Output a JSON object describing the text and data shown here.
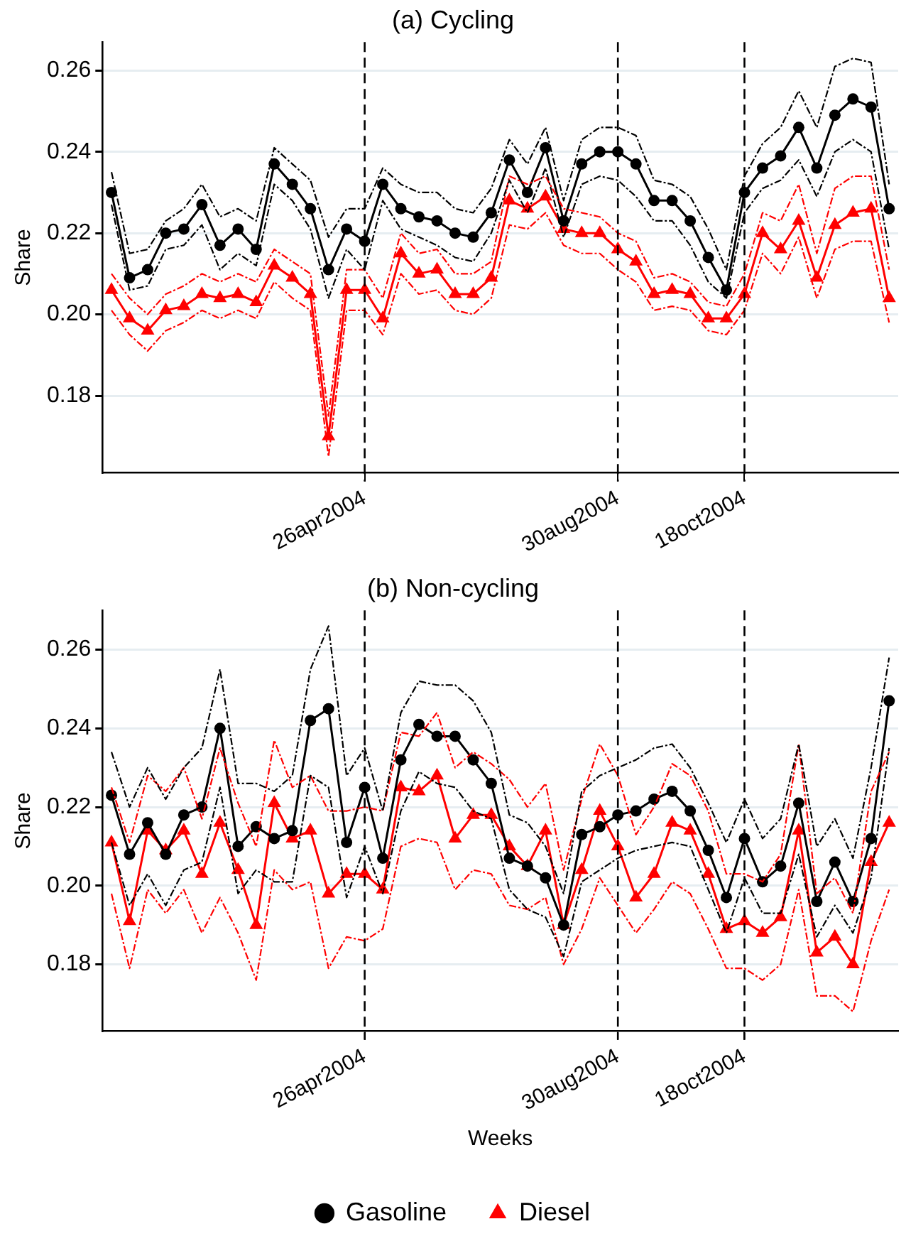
{
  "chart_data": [
    {
      "type": "line",
      "title": "(a) Cycling",
      "ylabel": "Share",
      "grid": "y",
      "categories": [
        null,
        null,
        null,
        null,
        null,
        null,
        null,
        null,
        null,
        null,
        null,
        null,
        null,
        null,
        "26apr2004",
        null,
        null,
        null,
        null,
        null,
        null,
        null,
        null,
        null,
        null,
        null,
        null,
        null,
        "30aug2004",
        null,
        null,
        null,
        null,
        null,
        null,
        "18oct2004",
        null,
        null,
        null,
        null,
        null,
        null,
        null,
        null
      ],
      "ylim": [
        0.161,
        0.267
      ],
      "yticks": [
        0.18,
        {
          "value": 0.2,
          "label": "0.20"
        },
        0.22,
        0.24,
        0.26
      ],
      "ref_lines": [
        {
          "axis": "x",
          "value": "26apr2004",
          "color": "#000000",
          "line_style": "dashed"
        },
        {
          "axis": "x",
          "value": "30aug2004",
          "color": "#000000",
          "line_style": "dashed"
        },
        {
          "axis": "x",
          "value": "18oct2004",
          "color": "#000000",
          "line_style": "dashed"
        }
      ],
      "series": [
        {
          "color": "#000000",
          "marker": "none",
          "line_style": "dashed",
          "values": [
            0.235,
            0.215,
            0.216,
            0.223,
            0.226,
            0.232,
            0.224,
            0.226,
            0.223,
            0.241,
            0.237,
            0.233,
            0.219,
            0.226,
            0.226,
            0.236,
            0.232,
            0.23,
            0.23,
            0.226,
            0.225,
            0.231,
            0.243,
            0.237,
            0.246,
            0.228,
            0.243,
            0.246,
            0.246,
            0.244,
            0.233,
            0.232,
            0.229,
            0.221,
            0.211,
            0.234,
            0.242,
            0.246,
            0.255,
            0.246,
            0.261,
            0.263,
            0.262,
            0.232
          ]
        },
        {
          "color": "#000000",
          "marker": "none",
          "line_style": "dashed",
          "values": [
            0.227,
            0.206,
            0.207,
            0.216,
            0.217,
            0.222,
            0.211,
            0.215,
            0.212,
            0.232,
            0.228,
            0.221,
            0.204,
            0.216,
            0.211,
            0.228,
            0.221,
            0.219,
            0.217,
            0.214,
            0.213,
            0.22,
            0.233,
            0.225,
            0.236,
            0.219,
            0.232,
            0.234,
            0.233,
            0.229,
            0.223,
            0.223,
            0.217,
            0.208,
            0.204,
            0.225,
            0.231,
            0.233,
            0.238,
            0.229,
            0.24,
            0.243,
            0.24,
            0.216
          ]
        },
        {
          "color": "#ff0000",
          "marker": "none",
          "line_style": "dashed",
          "values": [
            0.21,
            0.204,
            0.2,
            0.205,
            0.207,
            0.21,
            0.208,
            0.21,
            0.208,
            0.216,
            0.213,
            0.21,
            0.175,
            0.211,
            0.211,
            0.204,
            0.22,
            0.215,
            0.216,
            0.21,
            0.21,
            0.213,
            0.234,
            0.232,
            0.234,
            0.226,
            0.225,
            0.224,
            0.22,
            0.218,
            0.209,
            0.21,
            0.208,
            0.203,
            0.202,
            0.21,
            0.225,
            0.223,
            0.232,
            0.215,
            0.231,
            0.234,
            0.234,
            0.211
          ]
        },
        {
          "color": "#ff0000",
          "marker": "none",
          "line_style": "dashed",
          "values": [
            0.201,
            0.195,
            0.191,
            0.196,
            0.198,
            0.201,
            0.199,
            0.201,
            0.199,
            0.208,
            0.204,
            0.201,
            0.165,
            0.201,
            0.201,
            0.195,
            0.21,
            0.205,
            0.206,
            0.201,
            0.2,
            0.204,
            0.222,
            0.221,
            0.225,
            0.217,
            0.215,
            0.215,
            0.211,
            0.208,
            0.201,
            0.202,
            0.201,
            0.196,
            0.195,
            0.201,
            0.215,
            0.21,
            0.219,
            0.204,
            0.216,
            0.218,
            0.218,
            0.198
          ]
        },
        {
          "color": "#000000",
          "marker": "circle",
          "line_style": "solid",
          "values": [
            0.23,
            0.209,
            0.211,
            0.22,
            0.221,
            0.227,
            0.217,
            0.221,
            0.216,
            0.237,
            0.232,
            0.226,
            0.211,
            0.221,
            0.218,
            0.232,
            0.226,
            0.224,
            0.223,
            0.22,
            0.219,
            0.225,
            0.238,
            0.23,
            0.241,
            0.223,
            0.237,
            0.24,
            0.24,
            0.237,
            0.228,
            0.228,
            0.223,
            0.214,
            0.206,
            0.23,
            0.236,
            0.239,
            0.246,
            0.236,
            0.249,
            0.253,
            0.251,
            0.226
          ]
        },
        {
          "color": "#ff0000",
          "marker": "triangle",
          "line_style": "solid",
          "values": [
            0.206,
            0.199,
            0.196,
            0.201,
            0.202,
            0.205,
            0.204,
            0.205,
            0.203,
            0.212,
            0.209,
            0.205,
            0.17,
            0.206,
            0.206,
            0.199,
            0.215,
            0.21,
            0.211,
            0.205,
            0.205,
            0.209,
            0.228,
            0.226,
            0.229,
            0.221,
            0.22,
            0.22,
            0.216,
            0.213,
            0.205,
            0.206,
            0.205,
            0.199,
            0.199,
            0.205,
            0.22,
            0.216,
            0.223,
            0.209,
            0.222,
            0.225,
            0.226,
            0.204
          ]
        }
      ]
    },
    {
      "type": "line",
      "title": "(b) Non-cycling",
      "xlabel": "Weeks",
      "ylabel": "Share",
      "grid": "y",
      "legend": "bottom",
      "categories": [
        null,
        null,
        null,
        null,
        null,
        null,
        null,
        null,
        null,
        null,
        null,
        null,
        null,
        null,
        "26apr2004",
        null,
        null,
        null,
        null,
        null,
        null,
        null,
        null,
        null,
        null,
        null,
        null,
        null,
        "30aug2004",
        null,
        null,
        null,
        null,
        null,
        null,
        "18oct2004",
        null,
        null,
        null,
        null,
        null,
        null,
        null,
        null
      ],
      "ylim": [
        0.163,
        0.27
      ],
      "yticks": [
        0.18,
        {
          "value": 0.2,
          "label": "0.20"
        },
        0.22,
        0.24,
        0.26
      ],
      "ref_lines": [
        {
          "axis": "x",
          "value": "26apr2004",
          "color": "#000000",
          "line_style": "dashed"
        },
        {
          "axis": "x",
          "value": "30aug2004",
          "color": "#000000",
          "line_style": "dashed"
        },
        {
          "axis": "x",
          "value": "18oct2004",
          "color": "#000000",
          "line_style": "dashed"
        }
      ],
      "series": [
        {
          "color": "#000000",
          "marker": "none",
          "line_style": "dashed",
          "values": [
            0.234,
            0.22,
            0.23,
            0.222,
            0.23,
            0.235,
            0.255,
            0.226,
            0.226,
            0.224,
            0.228,
            0.255,
            0.266,
            0.228,
            0.235,
            0.219,
            0.244,
            0.252,
            0.251,
            0.251,
            0.247,
            0.239,
            0.218,
            0.216,
            0.21,
            0.198,
            0.224,
            0.228,
            0.23,
            0.232,
            0.235,
            0.236,
            0.23,
            0.221,
            0.211,
            0.222,
            0.212,
            0.217,
            0.236,
            0.21,
            0.217,
            0.207,
            0.23,
            0.258
          ]
        },
        {
          "color": "#000000",
          "marker": "none",
          "line_style": "dashed",
          "values": [
            0.211,
            0.195,
            0.203,
            0.195,
            0.204,
            0.206,
            0.225,
            0.198,
            0.204,
            0.201,
            0.201,
            0.228,
            0.225,
            0.197,
            0.21,
            0.198,
            0.219,
            0.229,
            0.226,
            0.225,
            0.219,
            0.217,
            0.199,
            0.194,
            0.192,
            0.182,
            0.201,
            0.204,
            0.207,
            0.209,
            0.21,
            0.211,
            0.21,
            0.199,
            0.188,
            0.202,
            0.193,
            0.193,
            0.208,
            0.187,
            0.195,
            0.188,
            0.202,
            0.235
          ]
        },
        {
          "color": "#ff0000",
          "marker": "none",
          "line_style": "dashed",
          "values": [
            0.225,
            0.211,
            0.228,
            0.224,
            0.23,
            0.217,
            0.235,
            0.221,
            0.21,
            0.237,
            0.225,
            0.228,
            0.219,
            0.219,
            0.22,
            0.219,
            0.239,
            0.238,
            0.244,
            0.23,
            0.234,
            0.231,
            0.227,
            0.22,
            0.226,
            0.204,
            0.222,
            0.236,
            0.228,
            0.213,
            0.22,
            0.231,
            0.228,
            0.219,
            0.203,
            0.203,
            0.201,
            0.208,
            0.236,
            0.198,
            0.202,
            0.193,
            0.224,
            0.234
          ]
        },
        {
          "color": "#ff0000",
          "marker": "none",
          "line_style": "dashed",
          "values": [
            0.198,
            0.179,
            0.199,
            0.193,
            0.199,
            0.188,
            0.197,
            0.188,
            0.176,
            0.204,
            0.199,
            0.201,
            0.179,
            0.187,
            0.186,
            0.189,
            0.21,
            0.212,
            0.211,
            0.199,
            0.204,
            0.203,
            0.195,
            0.194,
            0.197,
            0.18,
            0.189,
            0.202,
            0.195,
            0.188,
            0.194,
            0.201,
            0.198,
            0.189,
            0.179,
            0.179,
            0.176,
            0.18,
            0.199,
            0.172,
            0.172,
            0.168,
            0.186,
            0.199
          ]
        },
        {
          "name": "Gasoline",
          "color": "#000000",
          "marker": "circle",
          "line_style": "solid",
          "values": [
            0.223,
            0.208,
            0.216,
            0.208,
            0.218,
            0.22,
            0.24,
            0.21,
            0.215,
            0.212,
            0.214,
            0.242,
            0.245,
            0.211,
            0.225,
            0.207,
            0.232,
            0.241,
            0.238,
            0.238,
            0.232,
            0.226,
            0.207,
            0.205,
            0.202,
            0.19,
            0.213,
            0.215,
            0.218,
            0.219,
            0.222,
            0.224,
            0.219,
            0.209,
            0.197,
            0.212,
            0.201,
            0.205,
            0.221,
            0.196,
            0.206,
            0.196,
            0.212,
            0.247
          ]
        },
        {
          "name": "Diesel",
          "color": "#ff0000",
          "marker": "triangle",
          "line_style": "solid",
          "values": [
            0.211,
            0.191,
            0.214,
            0.209,
            0.214,
            0.203,
            0.216,
            0.204,
            0.19,
            0.221,
            0.212,
            0.214,
            0.198,
            0.203,
            0.203,
            0.199,
            0.225,
            0.224,
            0.228,
            0.212,
            0.218,
            0.218,
            0.21,
            0.205,
            0.214,
            0.19,
            0.204,
            0.219,
            0.21,
            0.197,
            0.203,
            0.216,
            0.214,
            0.203,
            0.189,
            0.191,
            0.188,
            0.192,
            0.214,
            0.183,
            0.187,
            0.18,
            0.206,
            0.216
          ]
        }
      ]
    }
  ]
}
